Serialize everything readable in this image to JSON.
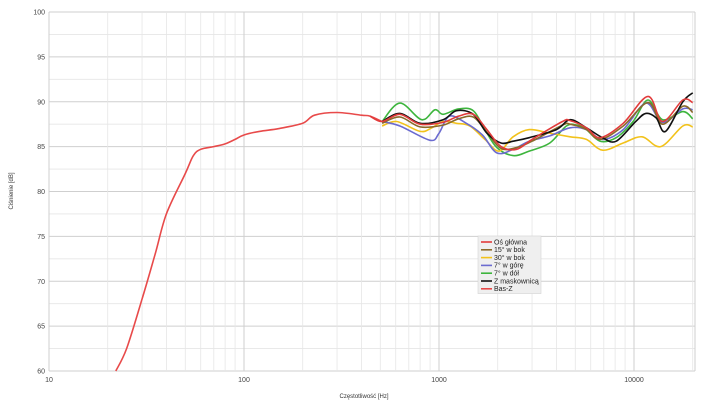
{
  "chart_data": {
    "type": "line",
    "title": "",
    "xlabel": "Częstotliwość [Hz]",
    "ylabel": "Ciśnienie [dB]",
    "x_scale": "log",
    "xlim": [
      10,
      20000
    ],
    "ylim": [
      60,
      100
    ],
    "x_ticks": [
      "10",
      "100",
      "1000",
      "10000"
    ],
    "y_ticks": [
      "60",
      "65",
      "70",
      "75",
      "80",
      "85",
      "90",
      "95",
      "100"
    ],
    "grid": true,
    "legend_position": "center-right",
    "series": [
      {
        "name": "Oś główna",
        "color": "#e23b3b",
        "points": [
          [
            443,
            88.4
          ],
          [
            511,
            87.8
          ],
          [
            630,
            88.6
          ],
          [
            800,
            87.5
          ],
          [
            1050,
            87.7
          ],
          [
            1260,
            88.4
          ],
          [
            1500,
            88.6
          ],
          [
            1760,
            86.9
          ],
          [
            2080,
            85
          ],
          [
            2500,
            84.7
          ],
          [
            3000,
            85.8
          ],
          [
            4300,
            87.8
          ],
          [
            4700,
            87.9
          ],
          [
            5700,
            87.1
          ],
          [
            6700,
            86
          ],
          [
            8800,
            87.6
          ],
          [
            11800,
            90.6
          ],
          [
            14000,
            87.8
          ],
          [
            17800,
            90.2
          ],
          [
            20000,
            89.9
          ]
        ]
      },
      {
        "name": "15° w bok",
        "color": "#8a6a2a",
        "points": [
          [
            511,
            87.6
          ],
          [
            630,
            88.3
          ],
          [
            800,
            87.2
          ],
          [
            1050,
            87.4
          ],
          [
            1260,
            88.1
          ],
          [
            1500,
            88.3
          ],
          [
            1760,
            86.6
          ],
          [
            2080,
            84.8
          ],
          [
            2500,
            84.9
          ],
          [
            3000,
            85.6
          ],
          [
            4300,
            87.4
          ],
          [
            4700,
            87.5
          ],
          [
            5700,
            86.9
          ],
          [
            6700,
            85.8
          ],
          [
            8800,
            87.3
          ],
          [
            11800,
            89.9
          ],
          [
            14000,
            87.5
          ],
          [
            17800,
            89.5
          ],
          [
            20000,
            88.8
          ]
        ]
      },
      {
        "name": "30° w bok",
        "color": "#f2c21b",
        "points": [
          [
            511,
            87.3
          ],
          [
            607,
            87.8
          ],
          [
            800,
            86.7
          ],
          [
            920,
            87.1
          ],
          [
            1050,
            87.8
          ],
          [
            1230,
            87.6
          ],
          [
            1440,
            87.3
          ],
          [
            1720,
            85.8
          ],
          [
            2030,
            84.5
          ],
          [
            2400,
            86.1
          ],
          [
            2900,
            86.9
          ],
          [
            3700,
            86.5
          ],
          [
            4700,
            86.1
          ],
          [
            5700,
            85.8
          ],
          [
            6900,
            84.6
          ],
          [
            8800,
            85.4
          ],
          [
            11000,
            86.1
          ],
          [
            13700,
            85
          ],
          [
            17800,
            87.3
          ],
          [
            20000,
            87.2
          ]
        ]
      },
      {
        "name": "7° w górę",
        "color": "#6b6bd0",
        "points": [
          [
            511,
            87.8
          ],
          [
            630,
            87.3
          ],
          [
            900,
            85.7
          ],
          [
            1000,
            86.5
          ],
          [
            1130,
            88.4
          ],
          [
            1380,
            87.6
          ],
          [
            1670,
            86.3
          ],
          [
            1980,
            84.3
          ],
          [
            2400,
            84.7
          ],
          [
            2900,
            85.6
          ],
          [
            3700,
            86.2
          ],
          [
            4700,
            87.1
          ],
          [
            5700,
            86.9
          ],
          [
            6900,
            85.8
          ],
          [
            8800,
            86.9
          ],
          [
            11500,
            89.85
          ],
          [
            14000,
            87.7
          ],
          [
            17800,
            89.2
          ],
          [
            20000,
            89.1
          ]
        ]
      },
      {
        "name": "7° w dół",
        "color": "#3db53d",
        "points": [
          [
            511,
            87.8
          ],
          [
            630,
            89.85
          ],
          [
            815,
            88
          ],
          [
            953,
            89.1
          ],
          [
            1050,
            88.6
          ],
          [
            1260,
            89.2
          ],
          [
            1500,
            89
          ],
          [
            1720,
            86.9
          ],
          [
            1980,
            84.9
          ],
          [
            2400,
            84
          ],
          [
            2900,
            84.5
          ],
          [
            3700,
            85.4
          ],
          [
            4500,
            87.3
          ],
          [
            5100,
            87.4
          ],
          [
            5700,
            86.9
          ],
          [
            6700,
            85.6
          ],
          [
            8100,
            86
          ],
          [
            9900,
            87.8
          ],
          [
            11800,
            90.2
          ],
          [
            14000,
            88
          ],
          [
            17800,
            88.9
          ],
          [
            20000,
            88.1
          ]
        ]
      },
      {
        "name": "Z maskownicą",
        "color": "#111111",
        "points": [
          [
            511,
            87.8
          ],
          [
            630,
            88.7
          ],
          [
            800,
            87.6
          ],
          [
            1050,
            88
          ],
          [
            1230,
            89
          ],
          [
            1500,
            88.6
          ],
          [
            1760,
            86.5
          ],
          [
            2080,
            85.4
          ],
          [
            2400,
            85.6
          ],
          [
            2900,
            86
          ],
          [
            4000,
            86.9
          ],
          [
            4700,
            88
          ],
          [
            5700,
            87.1
          ],
          [
            6900,
            86
          ],
          [
            8100,
            85.6
          ],
          [
            10200,
            87.8
          ],
          [
            11500,
            88.7
          ],
          [
            13000,
            88.2
          ],
          [
            14500,
            86.7
          ],
          [
            17800,
            90
          ],
          [
            20000,
            91
          ]
        ]
      },
      {
        "name": "Bas-Z",
        "color": "#e84a4a",
        "points": [
          [
            22,
            60
          ],
          [
            25,
            62.5
          ],
          [
            30,
            68
          ],
          [
            35,
            73
          ],
          [
            40,
            77.5
          ],
          [
            50,
            82
          ],
          [
            55,
            84
          ],
          [
            60,
            84.7
          ],
          [
            70,
            85
          ],
          [
            80,
            85.3
          ],
          [
            90,
            85.8
          ],
          [
            100,
            86.3
          ],
          [
            120,
            86.7
          ],
          [
            150,
            87
          ],
          [
            200,
            87.6
          ],
          [
            230,
            88.5
          ],
          [
            300,
            88.8
          ],
          [
            400,
            88.5
          ],
          [
            443,
            88.4
          ],
          [
            511,
            87.8
          ]
        ]
      }
    ]
  }
}
